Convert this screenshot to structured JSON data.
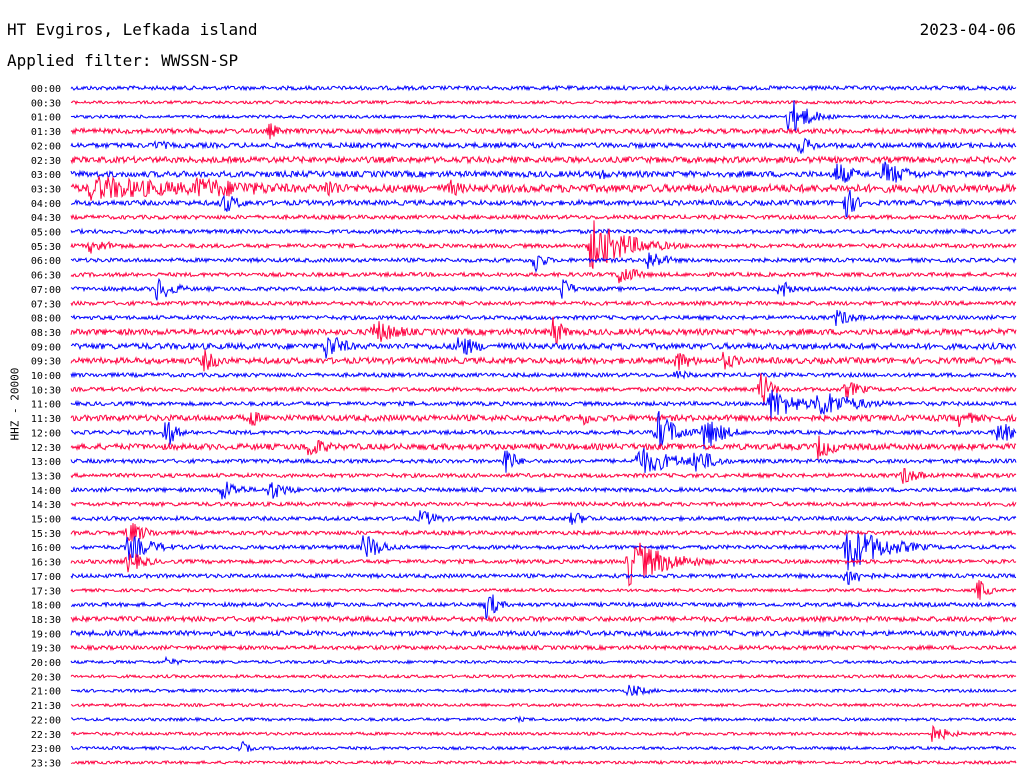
{
  "header": {
    "station": "HT Evgiros, Lefkada island",
    "date": "2023-04-06",
    "filter": "Applied filter: WWSSN-SP"
  },
  "chart_data": {
    "type": "line",
    "title": "HT Evgiros, Lefkada island",
    "ylabel": "HHZ - 20000",
    "colors": {
      "even": "#0000ff",
      "odd": "#ff0040"
    },
    "rows": [
      "00:00",
      "00:30",
      "01:00",
      "01:30",
      "02:00",
      "02:30",
      "03:00",
      "03:30",
      "04:00",
      "04:30",
      "05:00",
      "05:30",
      "06:00",
      "06:30",
      "07:00",
      "07:30",
      "08:00",
      "08:30",
      "09:00",
      "09:30",
      "10:00",
      "10:30",
      "11:00",
      "11:30",
      "12:00",
      "12:30",
      "13:00",
      "13:30",
      "14:00",
      "14:30",
      "15:00",
      "15:30",
      "16:00",
      "16:30",
      "17:00",
      "17:30",
      "18:00",
      "18:30",
      "19:00",
      "19:30",
      "20:00",
      "20:30",
      "21:00",
      "21:30",
      "22:00",
      "22:30",
      "23:00",
      "23:30"
    ],
    "noise": [
      2,
      1.5,
      1.5,
      2.5,
      2.5,
      3,
      3,
      4,
      2.5,
      2,
      2,
      2,
      2,
      2,
      2,
      2,
      2,
      3,
      3,
      3,
      2,
      2,
      2,
      3,
      2,
      3,
      2,
      2,
      2,
      2,
      2,
      2,
      2,
      2,
      2,
      1.5,
      2,
      2.5,
      2.5,
      2,
      1.5,
      1.5,
      1.5,
      1.5,
      1.5,
      1.5,
      1.5,
      1.5
    ],
    "events": [
      {
        "row": 2,
        "x": 0.76,
        "amp": 22,
        "dur": 0.02
      },
      {
        "row": 3,
        "x": 0.21,
        "amp": 10,
        "dur": 0.01
      },
      {
        "row": 4,
        "x": 0.09,
        "amp": 6,
        "dur": 0.02
      },
      {
        "row": 4,
        "x": 0.77,
        "amp": 10,
        "dur": 0.02
      },
      {
        "row": 6,
        "x": 0.56,
        "amp": 8,
        "dur": 0.01
      },
      {
        "row": 6,
        "x": 0.81,
        "amp": 14,
        "dur": 0.02
      },
      {
        "row": 6,
        "x": 0.86,
        "amp": 14,
        "dur": 0.03
      },
      {
        "row": 7,
        "x": 0.02,
        "amp": 14,
        "dur": 0.12
      },
      {
        "row": 7,
        "x": 0.13,
        "amp": 12,
        "dur": 0.1
      },
      {
        "row": 7,
        "x": 0.27,
        "amp": 12,
        "dur": 0.02
      },
      {
        "row": 7,
        "x": 0.4,
        "amp": 10,
        "dur": 0.02
      },
      {
        "row": 8,
        "x": 0.16,
        "amp": 12,
        "dur": 0.02
      },
      {
        "row": 8,
        "x": 0.82,
        "amp": 20,
        "dur": 0.01
      },
      {
        "row": 11,
        "x": 0.02,
        "amp": 8,
        "dur": 0.03
      },
      {
        "row": 11,
        "x": 0.55,
        "amp": 28,
        "dur": 0.04
      },
      {
        "row": 12,
        "x": 0.49,
        "amp": 16,
        "dur": 0.01
      },
      {
        "row": 12,
        "x": 0.61,
        "amp": 12,
        "dur": 0.02
      },
      {
        "row": 13,
        "x": 0.58,
        "amp": 12,
        "dur": 0.02
      },
      {
        "row": 14,
        "x": 0.09,
        "amp": 14,
        "dur": 0.02
      },
      {
        "row": 14,
        "x": 0.52,
        "amp": 14,
        "dur": 0.01
      },
      {
        "row": 14,
        "x": 0.75,
        "amp": 14,
        "dur": 0.01
      },
      {
        "row": 16,
        "x": 0.81,
        "amp": 10,
        "dur": 0.02
      },
      {
        "row": 17,
        "x": 0.32,
        "amp": 14,
        "dur": 0.03
      },
      {
        "row": 17,
        "x": 0.51,
        "amp": 20,
        "dur": 0.01
      },
      {
        "row": 18,
        "x": 0.27,
        "amp": 16,
        "dur": 0.02
      },
      {
        "row": 18,
        "x": 0.41,
        "amp": 14,
        "dur": 0.02
      },
      {
        "row": 19,
        "x": 0.14,
        "amp": 12,
        "dur": 0.02
      },
      {
        "row": 19,
        "x": 0.64,
        "amp": 12,
        "dur": 0.02
      },
      {
        "row": 19,
        "x": 0.69,
        "amp": 10,
        "dur": 0.02
      },
      {
        "row": 20,
        "x": 0.64,
        "amp": 6,
        "dur": 0.02
      },
      {
        "row": 21,
        "x": 0.73,
        "amp": 24,
        "dur": 0.01
      },
      {
        "row": 21,
        "x": 0.82,
        "amp": 10,
        "dur": 0.02
      },
      {
        "row": 22,
        "x": 0.74,
        "amp": 18,
        "dur": 0.03
      },
      {
        "row": 22,
        "x": 0.79,
        "amp": 16,
        "dur": 0.04
      },
      {
        "row": 23,
        "x": 0.19,
        "amp": 12,
        "dur": 0.01
      },
      {
        "row": 23,
        "x": 0.54,
        "amp": 8,
        "dur": 0.02
      },
      {
        "row": 23,
        "x": 0.94,
        "amp": 10,
        "dur": 0.02
      },
      {
        "row": 24,
        "x": 0.1,
        "amp": 20,
        "dur": 0.01
      },
      {
        "row": 24,
        "x": 0.62,
        "amp": 24,
        "dur": 0.02
      },
      {
        "row": 24,
        "x": 0.67,
        "amp": 20,
        "dur": 0.02
      },
      {
        "row": 24,
        "x": 0.98,
        "amp": 14,
        "dur": 0.02
      },
      {
        "row": 25,
        "x": 0.25,
        "amp": 14,
        "dur": 0.02
      },
      {
        "row": 25,
        "x": 0.79,
        "amp": 14,
        "dur": 0.02
      },
      {
        "row": 26,
        "x": 0.46,
        "amp": 18,
        "dur": 0.01
      },
      {
        "row": 26,
        "x": 0.6,
        "amp": 16,
        "dur": 0.04
      },
      {
        "row": 26,
        "x": 0.66,
        "amp": 16,
        "dur": 0.02
      },
      {
        "row": 27,
        "x": 0.88,
        "amp": 10,
        "dur": 0.02
      },
      {
        "row": 28,
        "x": 0.16,
        "amp": 12,
        "dur": 0.02
      },
      {
        "row": 28,
        "x": 0.21,
        "amp": 12,
        "dur": 0.02
      },
      {
        "row": 30,
        "x": 0.37,
        "amp": 10,
        "dur": 0.02
      },
      {
        "row": 30,
        "x": 0.53,
        "amp": 8,
        "dur": 0.02
      },
      {
        "row": 31,
        "x": 0.06,
        "amp": 14,
        "dur": 0.02
      },
      {
        "row": 32,
        "x": 0.06,
        "amp": 14,
        "dur": 0.03
      },
      {
        "row": 32,
        "x": 0.31,
        "amp": 16,
        "dur": 0.02
      },
      {
        "row": 32,
        "x": 0.82,
        "amp": 26,
        "dur": 0.04
      },
      {
        "row": 33,
        "x": 0.06,
        "amp": 12,
        "dur": 0.02
      },
      {
        "row": 33,
        "x": 0.59,
        "amp": 26,
        "dur": 0.04
      },
      {
        "row": 34,
        "x": 0.82,
        "amp": 12,
        "dur": 0.02
      },
      {
        "row": 35,
        "x": 0.96,
        "amp": 14,
        "dur": 0.01
      },
      {
        "row": 36,
        "x": 0.44,
        "amp": 20,
        "dur": 0.01
      },
      {
        "row": 38,
        "x": 0.5,
        "amp": 4,
        "dur": 0.02
      },
      {
        "row": 40,
        "x": 0.1,
        "amp": 5,
        "dur": 0.02
      },
      {
        "row": 42,
        "x": 0.59,
        "amp": 8,
        "dur": 0.02
      },
      {
        "row": 44,
        "x": 0.47,
        "amp": 3,
        "dur": 0.02
      },
      {
        "row": 45,
        "x": 0.91,
        "amp": 10,
        "dur": 0.02
      },
      {
        "row": 46,
        "x": 0.18,
        "amp": 8,
        "dur": 0.01
      }
    ]
  }
}
